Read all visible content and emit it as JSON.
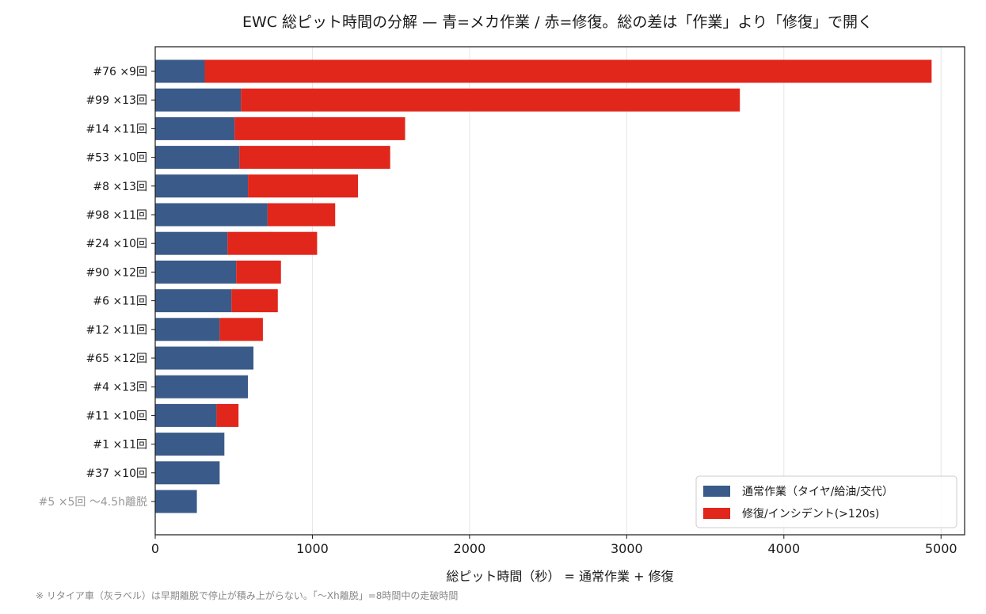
{
  "chart_data": {
    "type": "bar",
    "orientation": "horizontal",
    "stacked": true,
    "title": "EWC 総ピット時間の分解 — 青=メカ作業 / 赤=修復。総の差は「作業」より「修復」で開く",
    "xlabel": "総ピット時間（秒） = 通常作業 + 修復",
    "xlim": [
      0,
      5150
    ],
    "xticks": [
      "0",
      "1000",
      "2000",
      "3000",
      "4000",
      "5000"
    ],
    "grid": "vertical",
    "legend_position": "bottom-right",
    "note": "※ リタイア車（灰ラベル）は早期離脱で停止が積み上がらない。「〜Xh離脱」=8時間中の走破時間",
    "categories": [
      "#76 ×9回",
      "#99 ×13回",
      "#14 ×11回",
      "#53 ×10回",
      "#8 ×13回",
      "#98 ×11回",
      "#24 ×10回",
      "#90 ×12回",
      "#6 ×11回",
      "#12 ×11回",
      "#65 ×12回",
      "#4 ×13回",
      "#11 ×10回",
      "#1 ×11回",
      "#37 ×10回",
      "#5 ×5回 〜4.5h離脱"
    ],
    "retired": [
      false,
      false,
      false,
      false,
      false,
      false,
      false,
      false,
      false,
      false,
      false,
      false,
      false,
      false,
      false,
      true
    ],
    "series": [
      {
        "name": "通常作業（タイヤ/給油/交代）",
        "color": "#3a5a8a",
        "values": [
          315,
          545,
          505,
          535,
          590,
          715,
          460,
          515,
          485,
          410,
          625,
          590,
          390,
          440,
          410,
          265
        ]
      },
      {
        "name": "修復/インシデント(>120s)",
        "color": "#e1261c",
        "values": [
          4625,
          3175,
          1085,
          960,
          700,
          430,
          570,
          285,
          295,
          275,
          0,
          0,
          140,
          0,
          0,
          0
        ]
      }
    ]
  }
}
